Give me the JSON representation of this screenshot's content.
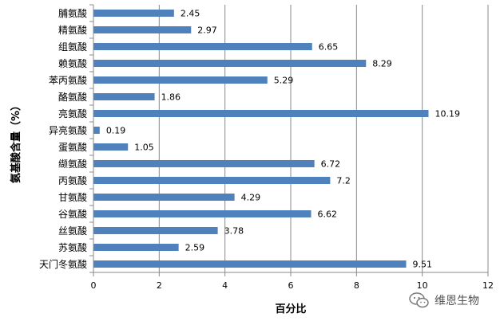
{
  "chart_data": {
    "type": "bar",
    "orientation": "horizontal",
    "categories": [
      "脯氨酸",
      "精氨酸",
      "组氨酸",
      "赖氨酸",
      "苯丙氨酸",
      "酪氨酸",
      "亮氨酸",
      "异亮氨酸",
      "蛋氨酸",
      "缬氨酸",
      "丙氨酸",
      "甘氨酸",
      "谷氨酸",
      "丝氨酸",
      "苏氨酸",
      "天门冬氨酸"
    ],
    "values": [
      2.45,
      2.97,
      6.65,
      8.29,
      5.29,
      1.86,
      10.19,
      0.19,
      1.05,
      6.72,
      7.2,
      4.29,
      6.62,
      3.78,
      2.59,
      9.51
    ],
    "value_labels": [
      "2.45",
      "2.97",
      "6.65",
      "8.29",
      "5.29",
      "1.86",
      "10.19",
      "0.19",
      "1.05",
      "6.72",
      "7.2",
      "4.29",
      "6.62",
      "3.78",
      "2.59",
      "9.51"
    ],
    "xlabel": "百分比",
    "ylabel": "氨基酸含量（%）",
    "xlim": [
      0,
      12
    ],
    "xticks": [
      "0",
      "2",
      "4",
      "6",
      "8",
      "10",
      "12"
    ],
    "grid": true,
    "bar_color": "#4f81bd"
  },
  "watermark": {
    "text": "维恩生物",
    "icon": "wechat-icon"
  }
}
